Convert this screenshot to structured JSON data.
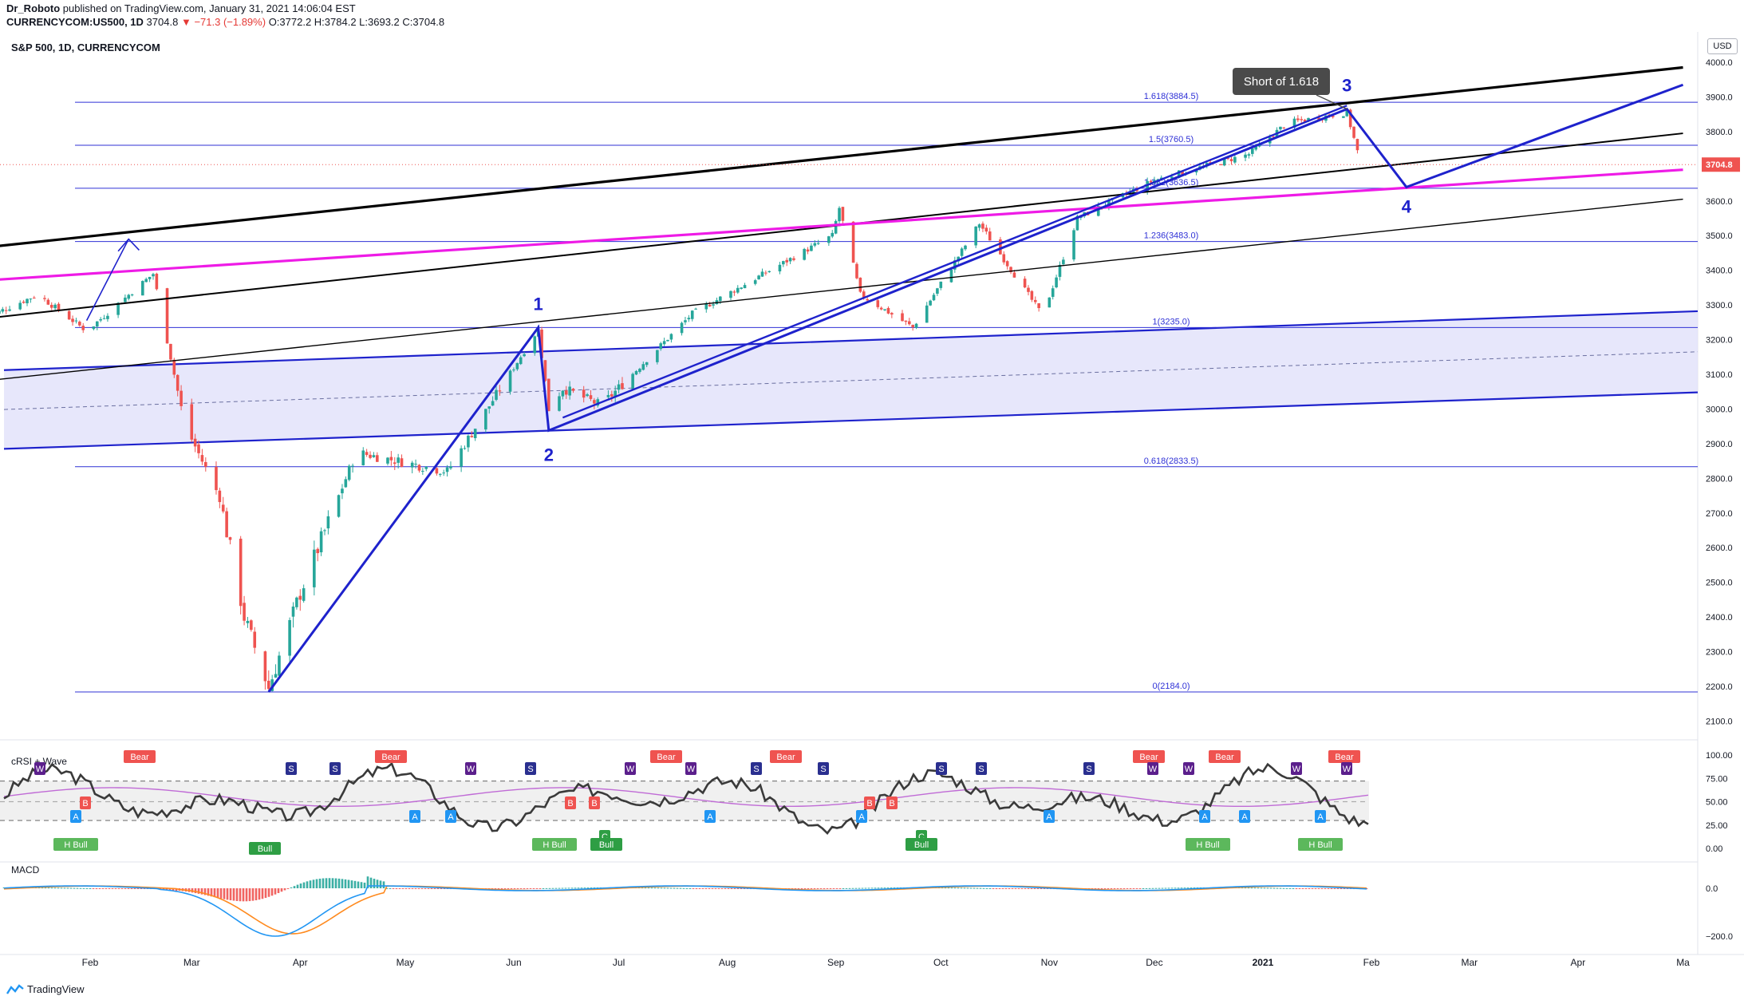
{
  "header": {
    "author": "Dr_Roboto",
    "published": "published on TradingView.com, January 31, 2021 14:06:04 EST",
    "symbol_line": "CURRENCYCOM:US500, 1D",
    "price": "3704.8",
    "change": "−71.3 (−1.89%)",
    "ohlc": "O:3772.2 H:3784.2 L:3693.2 C:3704.8",
    "chart_symbol": "S&P 500, 1D, CURRENCYCOM",
    "currency": "USD",
    "brand": "TradingView"
  },
  "colors": {
    "up": "#26a69a",
    "down": "#ef5350",
    "wave": "#1e22cc",
    "black_trend": "#000000",
    "magenta": "#ee1be6",
    "fib": "#2f31d6",
    "band_fill": "#e3e3fa"
  },
  "chart_data": [
    {
      "type": "candlestick",
      "title": "S&P 500, 1D, CURRENCYCOM",
      "ylim": [
        2070,
        4060
      ],
      "yticks": [
        2100,
        2200,
        2300,
        2400,
        2500,
        2600,
        2700,
        2800,
        2900,
        3000,
        3100,
        3200,
        3300,
        3400,
        3500,
        3600,
        3700,
        3800,
        3900,
        4000
      ],
      "xaxis": [
        {
          "date": "2020-02-01",
          "label": "Feb"
        },
        {
          "date": "2020-03-01",
          "label": "Mar"
        },
        {
          "date": "2020-04-01",
          "label": "Apr"
        },
        {
          "date": "2020-05-01",
          "label": "May"
        },
        {
          "date": "2020-06-01",
          "label": "Jun"
        },
        {
          "date": "2020-07-01",
          "label": "Jul"
        },
        {
          "date": "2020-08-01",
          "label": "Aug"
        },
        {
          "date": "2020-09-01",
          "label": "Sep"
        },
        {
          "date": "2020-10-01",
          "label": "Oct"
        },
        {
          "date": "2020-11-01",
          "label": "Nov"
        },
        {
          "date": "2020-12-01",
          "label": "Dec"
        },
        {
          "date": "2021-01-01",
          "label": "2021"
        },
        {
          "date": "2021-02-01",
          "label": "Feb"
        },
        {
          "date": "2021-03-01",
          "label": "Mar"
        },
        {
          "date": "2021-04-01",
          "label": "Apr"
        },
        {
          "date": "2021-05-01",
          "label": "Ma"
        }
      ],
      "price_path": [
        [
          "2020-01-01",
          3258
        ],
        [
          "2020-01-17",
          3330
        ],
        [
          "2020-01-31",
          3225
        ],
        [
          "2020-02-19",
          3390
        ],
        [
          "2020-02-28",
          2955
        ],
        [
          "2020-03-09",
          2745
        ],
        [
          "2020-03-16",
          2400
        ],
        [
          "2020-03-23",
          2195
        ],
        [
          "2020-04-01",
          2470
        ],
        [
          "2020-04-17",
          2875
        ],
        [
          "2020-05-13",
          2820
        ],
        [
          "2020-06-08",
          3230
        ],
        [
          "2020-06-11",
          3000
        ],
        [
          "2020-06-15",
          3060
        ],
        [
          "2020-06-26",
          3010
        ],
        [
          "2020-07-22",
          3275
        ],
        [
          "2020-08-31",
          3500
        ],
        [
          "2020-09-02",
          3580
        ],
        [
          "2020-09-08",
          3330
        ],
        [
          "2020-09-23",
          3235
        ],
        [
          "2020-10-12",
          3535
        ],
        [
          "2020-10-30",
          3270
        ],
        [
          "2020-11-09",
          3550
        ],
        [
          "2020-12-01",
          3660
        ],
        [
          "2020-12-28",
          3735
        ],
        [
          "2021-01-08",
          3825
        ],
        [
          "2021-01-25",
          3855
        ],
        [
          "2021-01-29",
          3705
        ]
      ],
      "last_price": 3704.8,
      "fib_levels": [
        {
          "label": "1.618(3884.5)",
          "value": 3884.5
        },
        {
          "label": "1.5(3760.5)",
          "value": 3760.5
        },
        {
          "label": "1.382(3636.5)",
          "value": 3636.5
        },
        {
          "label": "1.236(3483.0)",
          "value": 3483.0
        },
        {
          "label": "1(3235.0)",
          "value": 3235.0
        },
        {
          "label": "0.618(2833.5)",
          "value": 2833.5
        },
        {
          "label": "0(2184.0)",
          "value": 2184.0
        }
      ],
      "wave_labels": [
        {
          "label": "1",
          "date": "2020-06-08",
          "value": 3235
        },
        {
          "label": "2",
          "date": "2020-06-11",
          "value": 2938
        },
        {
          "label": "3",
          "date": "2021-01-25",
          "value": 3865
        },
        {
          "label": "4",
          "date": "2021-02-11",
          "value": 3640
        }
      ],
      "wave_path": [
        [
          "2020-03-23",
          2184
        ],
        [
          "2020-06-08",
          3235
        ],
        [
          "2020-06-11",
          2938
        ],
        [
          "2021-01-25",
          3865
        ],
        [
          "2021-02-11",
          3640
        ],
        [
          "2021-05-01",
          3935
        ]
      ],
      "callout": "Short of 1.618"
    },
    {
      "type": "line",
      "title": "cRSI + Wave",
      "ylim": [
        0,
        100
      ],
      "yticks": [
        "100.00",
        "75.00",
        "50.00",
        "25.00",
        "0.00"
      ],
      "band_levels": [
        72,
        50,
        30
      ],
      "signals": [
        "Bear",
        "B",
        "W",
        "S",
        "A",
        "H Bull",
        "Bull",
        "C"
      ]
    },
    {
      "type": "bar",
      "title": "MACD",
      "yticks": [
        "0.0",
        "−200.0"
      ]
    }
  ]
}
